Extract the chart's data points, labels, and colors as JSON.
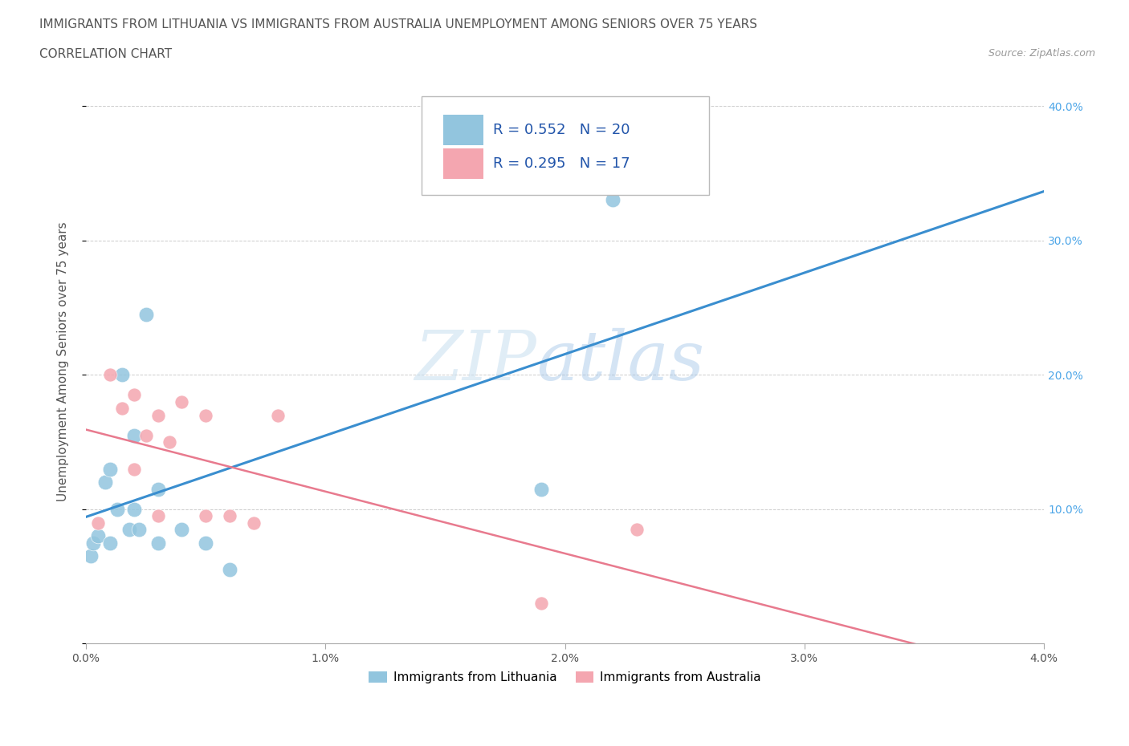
{
  "title_line1": "IMMIGRANTS FROM LITHUANIA VS IMMIGRANTS FROM AUSTRALIA UNEMPLOYMENT AMONG SENIORS OVER 75 YEARS",
  "title_line2": "CORRELATION CHART",
  "source": "Source: ZipAtlas.com",
  "ylabel": "Unemployment Among Seniors over 75 years",
  "x_label_bottom": "Immigrants from Lithuania",
  "x_label_bottom2": "Immigrants from Australia",
  "xlim": [
    0.0,
    0.04
  ],
  "ylim": [
    0.0,
    0.42
  ],
  "x_ticks": [
    0.0,
    0.01,
    0.02,
    0.03,
    0.04
  ],
  "x_tick_labels": [
    "0.0%",
    "1.0%",
    "2.0%",
    "3.0%",
    "4.0%"
  ],
  "y_ticks": [
    0.0,
    0.1,
    0.2,
    0.3,
    0.4
  ],
  "y_tick_labels": [
    "",
    "10.0%",
    "20.0%",
    "30.0%",
    "40.0%"
  ],
  "lithuania_R": 0.552,
  "lithuania_N": 20,
  "australia_R": 0.295,
  "australia_N": 17,
  "lithuania_color": "#92c5de",
  "australia_color": "#f4a6b0",
  "lithuania_line_color": "#3a8ecf",
  "australia_line_color": "#e87a8e",
  "background_color": "#ffffff",
  "grid_color": "#cccccc",
  "lithuania_scatter_x": [
    0.0002,
    0.0003,
    0.0005,
    0.0008,
    0.001,
    0.001,
    0.0013,
    0.0015,
    0.0018,
    0.002,
    0.002,
    0.0022,
    0.0025,
    0.003,
    0.003,
    0.004,
    0.005,
    0.006,
    0.019,
    0.022
  ],
  "lithuania_scatter_y": [
    0.065,
    0.075,
    0.08,
    0.12,
    0.13,
    0.075,
    0.1,
    0.2,
    0.085,
    0.155,
    0.1,
    0.085,
    0.245,
    0.115,
    0.075,
    0.085,
    0.075,
    0.055,
    0.115,
    0.33
  ],
  "australia_scatter_x": [
    0.0005,
    0.001,
    0.0015,
    0.002,
    0.002,
    0.0025,
    0.003,
    0.003,
    0.0035,
    0.004,
    0.005,
    0.005,
    0.006,
    0.007,
    0.008,
    0.019,
    0.023
  ],
  "australia_scatter_y": [
    0.09,
    0.2,
    0.175,
    0.185,
    0.13,
    0.155,
    0.17,
    0.095,
    0.15,
    0.18,
    0.095,
    0.17,
    0.095,
    0.09,
    0.17,
    0.03,
    0.085
  ],
  "watermark_part1": "ZIP",
  "watermark_part2": "atlas",
  "title_fontsize": 11,
  "source_fontsize": 9,
  "legend_fontsize": 13,
  "axis_label_fontsize": 11,
  "tick_fontsize": 10
}
